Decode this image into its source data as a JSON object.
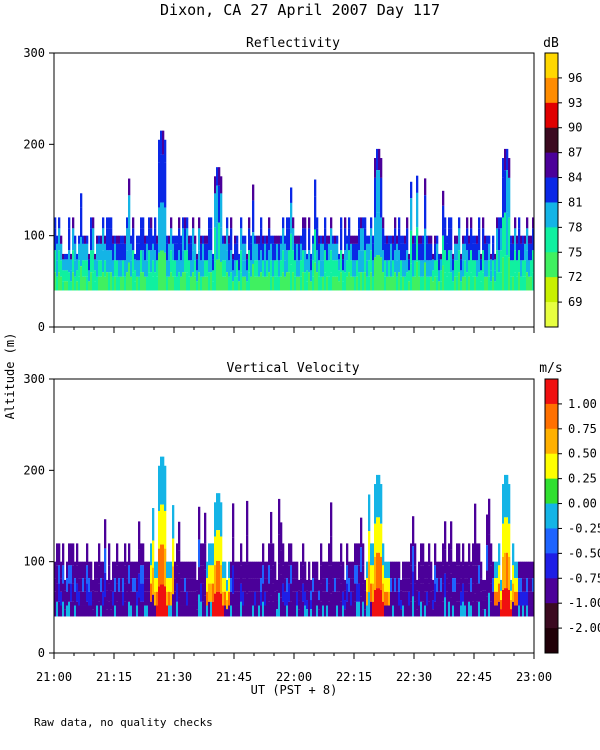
{
  "figure": {
    "title": "Dixon, CA 27 April 2007  Day 117",
    "ylabel": "Altitude (m)",
    "xlabel": "UT  (PST + 8)",
    "note": "Raw data, no quality checks"
  },
  "chart_data": [
    {
      "type": "heatmap",
      "title": "Reflectivity",
      "units": "dB",
      "xlim": [
        "21:00",
        "23:00"
      ],
      "xticks": [
        "21:00",
        "21:15",
        "21:30",
        "21:45",
        "22:00",
        "22:15",
        "22:30",
        "22:45",
        "23:00"
      ],
      "ylim": [
        0,
        300
      ],
      "yticks": [
        0,
        100,
        200,
        300
      ],
      "colorbar": {
        "labels": [
          "96",
          "93",
          "90",
          "87",
          "84",
          "81",
          "78",
          "75",
          "72",
          "69"
        ],
        "colors": [
          "#FFD700",
          "#FF8C00",
          "#E00000",
          "#3B0A20",
          "#4B0099",
          "#0A28E6",
          "#14B4E6",
          "#10F0A0",
          "#40F060",
          "#C8F000",
          "#E8FF40"
        ]
      },
      "echo_base_m": 40,
      "echo_top_m": {
        "typical": 100,
        "peaks": [
          {
            "time": "21:27",
            "top": 220
          },
          {
            "time": "21:41",
            "top": 180
          },
          {
            "time": "22:21",
            "top": 200
          },
          {
            "time": "22:53",
            "top": 200
          }
        ]
      }
    },
    {
      "type": "heatmap",
      "title": "Vertical Velocity",
      "units": "m/s",
      "xlim": [
        "21:00",
        "23:00"
      ],
      "xticks": [
        "21:00",
        "21:15",
        "21:30",
        "21:45",
        "22:00",
        "22:15",
        "22:30",
        "22:45",
        "23:00"
      ],
      "ylim": [
        0,
        300
      ],
      "yticks": [
        0,
        100,
        200,
        300
      ],
      "colorbar": {
        "labels": [
          "1.00",
          "0.75",
          "0.50",
          "0.25",
          "0.00",
          "-0.25",
          "-0.50",
          "-0.75",
          "-1.00",
          "-2.00"
        ],
        "colors": [
          "#F01010",
          "#FF7000",
          "#FFB000",
          "#FFFF00",
          "#30E030",
          "#14B4E6",
          "#1E64FF",
          "#1E1EE6",
          "#4B0099",
          "#3B0A20",
          "#200008"
        ]
      },
      "echo_base_m": 40,
      "echo_top_m": {
        "typical": 100,
        "peaks": [
          {
            "time": "21:27",
            "top": 220
          },
          {
            "time": "21:41",
            "top": 180
          },
          {
            "time": "22:21",
            "top": 200
          },
          {
            "time": "22:53",
            "top": 200
          }
        ]
      }
    }
  ]
}
